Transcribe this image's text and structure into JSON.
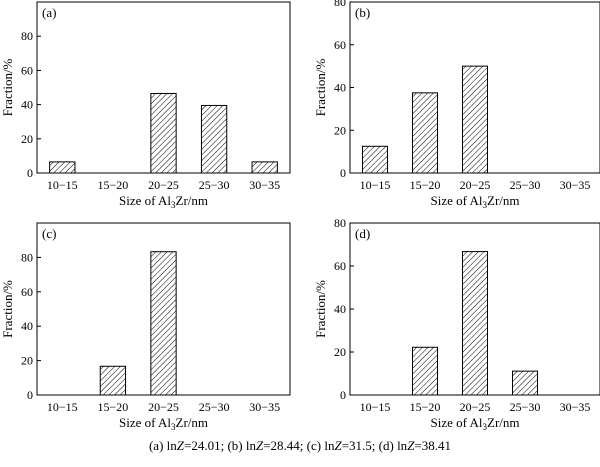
{
  "chart_data": [
    {
      "type": "bar",
      "panel_label": "(a)",
      "categories": [
        "10−15",
        "15−20",
        "20−25",
        "25−30",
        "30−35"
      ],
      "values": [
        6.5,
        0,
        46.5,
        39.5,
        6.5
      ],
      "xlabel_parts": [
        "Size of Al",
        "3",
        "Zr/nm"
      ],
      "ylabel": "Fraction/%",
      "ylim": [
        0,
        100
      ],
      "yticks": [
        0,
        20,
        40,
        60,
        80
      ],
      "grid": false,
      "bar_pattern": "diagonal-hatch"
    },
    {
      "type": "bar",
      "panel_label": "(b)",
      "categories": [
        "10−15",
        "15−20",
        "20−25",
        "25−30",
        "30−35"
      ],
      "values": [
        12.5,
        37.5,
        50,
        0,
        0
      ],
      "xlabel_parts": [
        "Size of Al",
        "3",
        "Zr/nm"
      ],
      "ylabel": "Fraction/%",
      "ylim": [
        0,
        80
      ],
      "yticks": [
        0,
        20,
        40,
        60,
        80
      ],
      "grid": false,
      "bar_pattern": "diagonal-hatch"
    },
    {
      "type": "bar",
      "panel_label": "(c)",
      "categories": [
        "10−15",
        "15−20",
        "20−25",
        "25−30",
        "30−35"
      ],
      "values": [
        0,
        16.7,
        83.3,
        0,
        0
      ],
      "xlabel_parts": [
        "Size of Al",
        "3",
        "Zr/nm"
      ],
      "ylabel": "Fraction/%",
      "ylim": [
        0,
        100
      ],
      "yticks": [
        0,
        20,
        40,
        60,
        80
      ],
      "grid": false,
      "bar_pattern": "diagonal-hatch"
    },
    {
      "type": "bar",
      "panel_label": "(d)",
      "categories": [
        "10−15",
        "15−20",
        "20−25",
        "25−30",
        "30−35"
      ],
      "values": [
        0,
        22.2,
        66.7,
        11.1,
        0
      ],
      "xlabel_parts": [
        "Size of Al",
        "3",
        "Zr/nm"
      ],
      "ylabel": "Fraction/%",
      "ylim": [
        0,
        80
      ],
      "yticks": [
        0,
        20,
        40,
        60,
        80
      ],
      "grid": false,
      "bar_pattern": "diagonal-hatch"
    }
  ],
  "caption": {
    "a_prefix": "(a) ln",
    "a_var": "Z",
    "a_value": "=24.01; ",
    "b_prefix": "(b) ln",
    "b_var": "Z",
    "b_value": "=28.44; ",
    "c_prefix": "(c) ln",
    "c_var": "Z",
    "c_value": "=31.5; ",
    "d_prefix": "(d) ln",
    "d_var": "Z",
    "d_value": "=38.41"
  }
}
